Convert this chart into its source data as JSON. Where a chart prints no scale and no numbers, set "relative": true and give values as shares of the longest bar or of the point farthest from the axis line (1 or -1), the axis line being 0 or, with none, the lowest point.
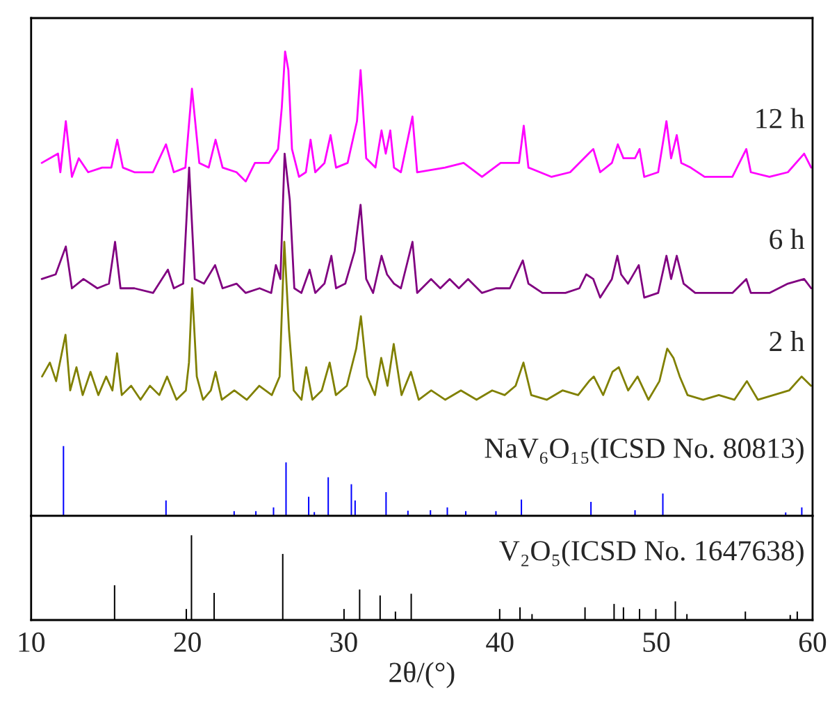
{
  "chart_data": [
    {
      "type": "line",
      "relative": true,
      "xlim": [
        10,
        60
      ],
      "tick_labels": false,
      "series": [
        {
          "name": "12 h",
          "color": "#ff00ff",
          "x": [
            10.68,
            11.72,
            11.87,
            12.22,
            12.61,
            13.05,
            13.65,
            14.54,
            15.13,
            15.51,
            15.87,
            16.61,
            17.8,
            18.63,
            19.13,
            19.87,
            20.29,
            20.76,
            21.36,
            21.8,
            22.25,
            23.14,
            23.73,
            24.32,
            25.21,
            25.8,
            26.04,
            26.25,
            26.46,
            26.69,
            27.14,
            27.58,
            27.88,
            28.18,
            28.77,
            29.16,
            29.51,
            30.25,
            30.85,
            31.08,
            31.44,
            32.03,
            32.42,
            32.69,
            32.98,
            33.22,
            33.66,
            34.4,
            34.7,
            36.48,
            37.67,
            38.85,
            40.04,
            41.22,
            41.52,
            41.82,
            43.3,
            44.49,
            45.67,
            45.97,
            46.41,
            47.16,
            47.54,
            47.9,
            48.64,
            48.93,
            49.23,
            50.12,
            50.65,
            50.95,
            51.31,
            51.6,
            52.2,
            53.09,
            54.87,
            55.76,
            56.05,
            57.24,
            58.42,
            59.46,
            59.91
          ],
          "values": [
            0.76,
            0.78,
            0.74,
            0.85,
            0.73,
            0.77,
            0.74,
            0.75,
            0.75,
            0.81,
            0.75,
            0.74,
            0.74,
            0.8,
            0.74,
            0.75,
            0.92,
            0.76,
            0.75,
            0.81,
            0.75,
            0.74,
            0.72,
            0.76,
            0.76,
            0.79,
            0.88,
            1.0,
            0.96,
            0.79,
            0.73,
            0.74,
            0.81,
            0.74,
            0.76,
            0.82,
            0.75,
            0.76,
            0.85,
            0.96,
            0.77,
            0.75,
            0.83,
            0.78,
            0.83,
            0.75,
            0.74,
            0.86,
            0.74,
            0.75,
            0.76,
            0.73,
            0.76,
            0.76,
            0.84,
            0.75,
            0.73,
            0.74,
            0.78,
            0.79,
            0.74,
            0.76,
            0.8,
            0.77,
            0.77,
            0.79,
            0.73,
            0.74,
            0.85,
            0.77,
            0.82,
            0.76,
            0.75,
            0.73,
            0.73,
            0.79,
            0.74,
            0.73,
            0.74,
            0.78,
            0.75
          ]
        },
        {
          "name": "6 h",
          "color": "#800080",
          "x": [
            10.68,
            11.57,
            12.22,
            12.61,
            13.35,
            14.24,
            14.98,
            15.37,
            15.72,
            16.61,
            17.8,
            18.75,
            19.13,
            19.73,
            20.11,
            20.47,
            21.06,
            21.77,
            22.25,
            23.14,
            23.73,
            24.62,
            25.36,
            25.66,
            25.95,
            26.22,
            26.55,
            26.84,
            27.29,
            27.82,
            28.18,
            28.77,
            29.21,
            29.51,
            30.1,
            30.7,
            31.08,
            31.44,
            31.88,
            32.42,
            32.77,
            33.22,
            33.66,
            34.4,
            34.7,
            35.59,
            36.18,
            36.78,
            37.37,
            37.96,
            38.85,
            39.74,
            40.63,
            41.46,
            41.82,
            42.71,
            44.19,
            45.08,
            45.52,
            45.97,
            46.41,
            47.16,
            47.51,
            47.75,
            48.19,
            48.88,
            49.23,
            50.12,
            50.65,
            50.95,
            51.31,
            51.75,
            52.49,
            53.68,
            54.87,
            55.76,
            56.05,
            57.24,
            58.42,
            59.46,
            59.91
          ],
          "values": [
            0.51,
            0.52,
            0.58,
            0.49,
            0.51,
            0.49,
            0.5,
            0.59,
            0.49,
            0.49,
            0.48,
            0.53,
            0.49,
            0.5,
            0.75,
            0.51,
            0.5,
            0.54,
            0.49,
            0.5,
            0.48,
            0.49,
            0.48,
            0.54,
            0.51,
            0.78,
            0.68,
            0.49,
            0.48,
            0.53,
            0.48,
            0.5,
            0.56,
            0.49,
            0.5,
            0.57,
            0.67,
            0.51,
            0.48,
            0.56,
            0.52,
            0.5,
            0.49,
            0.59,
            0.48,
            0.51,
            0.49,
            0.51,
            0.49,
            0.51,
            0.48,
            0.49,
            0.49,
            0.55,
            0.5,
            0.48,
            0.48,
            0.49,
            0.52,
            0.51,
            0.47,
            0.51,
            0.56,
            0.52,
            0.5,
            0.54,
            0.47,
            0.48,
            0.56,
            0.51,
            0.56,
            0.5,
            0.48,
            0.48,
            0.48,
            0.51,
            0.48,
            0.48,
            0.5,
            0.51,
            0.49
          ]
        },
        {
          "name": "2 h",
          "color": "#808000",
          "x": [
            10.7,
            11.2,
            11.6,
            11.9,
            12.2,
            12.5,
            12.9,
            13.3,
            13.8,
            14.3,
            14.8,
            15.2,
            15.5,
            15.8,
            16.4,
            17.0,
            17.6,
            18.2,
            18.7,
            19.3,
            19.9,
            20.1,
            20.3,
            20.6,
            21.0,
            21.5,
            21.8,
            22.2,
            23.0,
            23.8,
            24.6,
            25.4,
            25.9,
            26.2,
            26.5,
            26.8,
            27.3,
            27.6,
            28.0,
            28.6,
            29.1,
            29.5,
            30.2,
            30.8,
            31.1,
            31.5,
            32.0,
            32.4,
            32.8,
            33.2,
            33.7,
            34.3,
            34.8,
            35.6,
            36.5,
            37.5,
            38.5,
            39.5,
            40.3,
            41.0,
            41.5,
            42.0,
            43.0,
            44.0,
            45.0,
            45.7,
            46.0,
            46.6,
            47.2,
            47.6,
            48.2,
            48.8,
            49.5,
            50.2,
            50.7,
            51.1,
            51.5,
            52.0,
            53.0,
            54.0,
            55.0,
            55.8,
            56.5,
            57.5,
            58.5,
            59.3,
            59.9
          ],
          "values": [
            0.3,
            0.33,
            0.29,
            0.34,
            0.39,
            0.27,
            0.32,
            0.26,
            0.31,
            0.26,
            0.3,
            0.27,
            0.35,
            0.26,
            0.28,
            0.25,
            0.28,
            0.26,
            0.3,
            0.25,
            0.27,
            0.33,
            0.49,
            0.3,
            0.25,
            0.27,
            0.31,
            0.25,
            0.27,
            0.25,
            0.28,
            0.26,
            0.3,
            0.59,
            0.4,
            0.27,
            0.25,
            0.32,
            0.25,
            0.27,
            0.33,
            0.26,
            0.28,
            0.36,
            0.43,
            0.3,
            0.26,
            0.34,
            0.28,
            0.37,
            0.26,
            0.31,
            0.25,
            0.27,
            0.25,
            0.27,
            0.25,
            0.27,
            0.26,
            0.28,
            0.33,
            0.26,
            0.25,
            0.27,
            0.26,
            0.29,
            0.3,
            0.26,
            0.31,
            0.32,
            0.27,
            0.3,
            0.25,
            0.29,
            0.36,
            0.34,
            0.3,
            0.26,
            0.25,
            0.26,
            0.25,
            0.29,
            0.25,
            0.26,
            0.27,
            0.3,
            0.28
          ]
        },
        {
          "type": "bar",
          "name": "NaV₆O₁₅(ICSD No. 80813)",
          "color": "#0000ff",
          "x": [
            12.07,
            12.52,
            18.63,
            22.99,
            24.38,
            25.51,
            26.31,
            27.76,
            28.12,
            29.01,
            30.49,
            30.73,
            32.71,
            34.11,
            35.55,
            36.63,
            37.81,
            39.74,
            41.37,
            45.82,
            48.64,
            50.42,
            52.05,
            55.46,
            58.28,
            59.31
          ],
          "values": [
            0.15,
            null,
            0.033,
            0.01,
            0.01,
            0.018,
            0.115,
            0.041,
            0.008,
            0.083,
            0.068,
            0.033,
            0.051,
            0.011,
            0.012,
            0.018,
            0.01,
            0.01,
            0.035,
            0.03,
            0.012,
            0.048,
            null,
            null,
            0.007,
            0.018
          ]
        }
      ]
    },
    {
      "type": "bar",
      "relative": true,
      "xlim": [
        10,
        60
      ],
      "xticks": [
        10,
        20,
        30,
        40,
        50,
        60
      ],
      "tick_labels": "x",
      "xlabel": "2θ/(°)",
      "series": [
        {
          "name": "V₂O₅(ICSD No. 1647638)",
          "color": "#000000",
          "x": [
            15.34,
            19.93,
            20.26,
            21.71,
            26.1,
            30.02,
            31.02,
            32.33,
            33.31,
            34.32,
            39.98,
            41.28,
            42.05,
            45.44,
            47.3,
            47.9,
            48.93,
            49.97,
            51.22,
            51.96,
            55.7,
            58.57,
            59.02
          ],
          "values": [
            0.41,
            0.13,
            1.0,
            0.32,
            0.78,
            0.13,
            0.36,
            0.29,
            0.1,
            0.31,
            0.13,
            0.15,
            0.07,
            0.15,
            0.19,
            0.15,
            0.13,
            0.13,
            0.22,
            0.07,
            0.1,
            0.06,
            0.1
          ]
        }
      ]
    }
  ]
}
